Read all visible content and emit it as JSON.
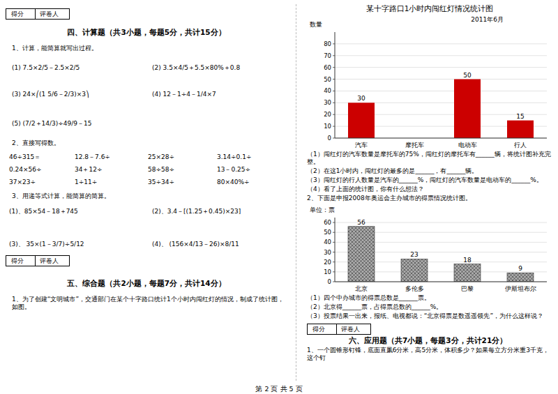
{
  "chart_data": [
    {
      "type": "bar",
      "title": "某十字路口1小时内闯红灯情况统计图",
      "subtitle": "2011年6月",
      "ylabel": "数量",
      "categories": [
        "汽车",
        "摩托车",
        "电动车",
        "行人"
      ],
      "values": [
        30,
        0,
        50,
        15
      ],
      "value_labels": [
        "30",
        null,
        "50",
        "15"
      ],
      "data_labels": true,
      "color": "#cc0000",
      "ylim": [
        0,
        90
      ],
      "yticks": [
        0,
        10,
        20,
        30,
        40,
        50,
        60,
        70,
        80
      ],
      "grid": true,
      "annotations": [
        "得分",
        "评卷人",
        "四、计算题（共3小题，每题5分，共计15分）",
        "1、计算，能简算就写出过程。",
        "(1)  7.5×2/5－2.5×2/5",
        "(2)  3.5×4/5＋5.5×80%＋0.8",
        "(3)  24×⎛(1 5/6－2/3)×3⎞",
        "(4)  12－1÷4－1/4×7",
        "(5)  (7/2＋14/3)÷49/9－15",
        "2、直接写得数。",
        "46÷315＝",
        "12.8－7.6÷",
        "25×28÷",
        "3.14÷0.1÷",
        "0.24×56÷",
        "34＋12÷",
        "58÷58÷",
        "13－0.25÷",
        "37×23÷",
        "1÷11÷",
        "35÷34÷",
        "80×40%÷",
        "3、用递等式计算，能简算的简算。",
        "(1)、85×54－18＋745",
        "(2)、3.4－[(1.25＋0.45)×23]",
        "(3)、  35×(1－3/7)÷5/12",
        "(4)、  (156×4/13－26)×8/11",
        "得分",
        "评卷人",
        "五、综合题（共2小题，每题7分，共计14分）",
        "1、为了创建“文明城市”，交通部门在某个十字路口统计1个小时内闯红灯的情况，制成了统计图，如图。",
        "（1）闯红灯的汽车数量是摩托车的75%，闯红灯的摩托车有______辆，将统计图补充完整。",
        "（2）在这1小时内，闯红灯的最多的是______，有______辆。",
        "（3）闯红灯的行人数量是汽车的______%，闯红灯的汽车数量是电动车的______%。",
        "（4）看了上面的统计图，你有什么想法？",
        "2、下面是申报2008年奥运会主办城市的得票情况统计图。"
      ]
    },
    {
      "type": "bar",
      "ylabel": "单位：票",
      "categories": [
        "北京",
        "多伦多",
        "巴黎",
        "伊斯坦布尔"
      ],
      "values": [
        56,
        23,
        18,
        9
      ],
      "data_labels": true,
      "color": "#aaaaaa",
      "ylim": [
        0,
        65
      ],
      "yticks": [
        0,
        10,
        20,
        30,
        40,
        50,
        60
      ],
      "grid": true,
      "annotations": [
        "（1）四个中办城市的得票总数是______票。",
        "（2）北京得______票，占得票总数的______%。",
        "（3）投票结果一出来，报纸、电视都说：“北京得票是数遥遥领先”，为什么这样说？",
        "得分",
        "评卷人",
        "六、应用题（共7小题，每题3分，共计21分）",
        "1、一个圆锥形钉锋，底面直凲6分米，高5分米，体积多少？如果每立方分米重3千克，这个钉",
        "第 2 页 共 5 页"
      ]
    }
  ]
}
